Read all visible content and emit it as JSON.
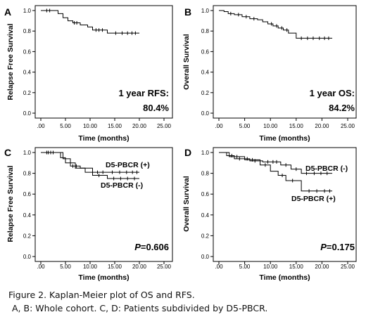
{
  "caption": {
    "line1": "Figure 2. Kaplan-Meier plot of OS and RFS.",
    "line2": "A, B: Whole cohort. C, D: Patients  subdivided by D5-PBCR."
  },
  "chart_data": [
    {
      "type": "line",
      "panel_label": "A",
      "xlabel": "Time (months)",
      "ylabel": "Relapse Free Survival",
      "xlim": [
        0,
        25
      ],
      "ylim": [
        0,
        1
      ],
      "x_ticks": [
        ".00",
        "5.00",
        "10.00",
        "15.00",
        "20.00",
        "25.00"
      ],
      "y_ticks": [
        "0.0",
        "0.2",
        "0.4",
        "0.6",
        "0.8",
        "1.0"
      ],
      "annotation": [
        "1 year RFS:",
        "80.4%"
      ],
      "series": [
        {
          "steps": [
            [
              0,
              1.0
            ],
            [
              2.5,
              1.0
            ],
            [
              3.5,
              0.97
            ],
            [
              4.5,
              0.93
            ],
            [
              5.5,
              0.9
            ],
            [
              6.5,
              0.88
            ],
            [
              8,
              0.86
            ],
            [
              9.5,
              0.84
            ],
            [
              10.5,
              0.81
            ],
            [
              13.5,
              0.78
            ],
            [
              20,
              0.78
            ]
          ],
          "censored": [
            1.2,
            1.8,
            6.8,
            7.3,
            11.2,
            11.8,
            12.5,
            15.2,
            16.5,
            17.6,
            18.5,
            19.2
          ]
        }
      ]
    },
    {
      "type": "line",
      "panel_label": "B",
      "xlabel": "Time (months)",
      "ylabel": "Overall Survival",
      "xlim": [
        0,
        25
      ],
      "ylim": [
        0,
        1
      ],
      "x_ticks": [
        ".00",
        "5.00",
        "10.00",
        "15.00",
        "20.00",
        "25.00"
      ],
      "y_ticks": [
        "0.0",
        "0.2",
        "0.4",
        "0.6",
        "0.8",
        "1.0"
      ],
      "annotation": [
        "1 year OS:",
        "84.2%"
      ],
      "series": [
        {
          "steps": [
            [
              0,
              1.0
            ],
            [
              1,
              0.99
            ],
            [
              1.8,
              0.97
            ],
            [
              3,
              0.96
            ],
            [
              4.5,
              0.94
            ],
            [
              6,
              0.92
            ],
            [
              7.5,
              0.91
            ],
            [
              8.5,
              0.89
            ],
            [
              9.5,
              0.87
            ],
            [
              10.5,
              0.85
            ],
            [
              11.5,
              0.83
            ],
            [
              12.5,
              0.81
            ],
            [
              13.5,
              0.78
            ],
            [
              15,
              0.73
            ],
            [
              22,
              0.73
            ]
          ],
          "censored": [
            2.3,
            3.8,
            5.3,
            6.8,
            10.2,
            11.2,
            12.2,
            13.2,
            16,
            17.2,
            18.3,
            19.5,
            20.5,
            21.3
          ]
        }
      ]
    },
    {
      "type": "line",
      "panel_label": "C",
      "xlabel": "Time (months)",
      "ylabel": "Relapse Free Survival",
      "xlim": [
        0,
        25
      ],
      "ylim": [
        0,
        1
      ],
      "x_ticks": [
        ".00",
        "5.00",
        "10.00",
        "15.00",
        "20.00",
        "25.00"
      ],
      "y_ticks": [
        "0.0",
        "0.2",
        "0.4",
        "0.6",
        "0.8",
        "1.0"
      ],
      "annotation": [
        "P=0.606"
      ],
      "series": [
        {
          "name": "D5-PBCR (+)",
          "steps": [
            [
              0,
              1.0
            ],
            [
              3,
              1.0
            ],
            [
              4,
              0.95
            ],
            [
              5,
              0.9
            ],
            [
              6,
              0.87
            ],
            [
              8,
              0.85
            ],
            [
              10.5,
              0.81
            ],
            [
              20,
              0.81
            ]
          ],
          "censored": [
            1.2,
            2,
            6.5,
            7.2,
            11.5,
            12.6,
            14.5,
            16,
            17.4,
            18.6,
            19.5
          ]
        },
        {
          "name": "D5-PBCR (-)",
          "steps": [
            [
              0,
              1.0
            ],
            [
              3.5,
              1.0
            ],
            [
              4.5,
              0.94
            ],
            [
              6,
              0.9
            ],
            [
              7,
              0.85
            ],
            [
              9,
              0.81
            ],
            [
              10.5,
              0.78
            ],
            [
              13.5,
              0.75
            ],
            [
              20,
              0.75
            ]
          ],
          "censored": [
            1.5,
            2.5,
            11.8,
            14.8,
            16.2,
            17.6,
            19
          ]
        }
      ]
    },
    {
      "type": "line",
      "panel_label": "D",
      "xlabel": "Time (months)",
      "ylabel": "Overall Survival",
      "xlim": [
        0,
        25
      ],
      "ylim": [
        0,
        1
      ],
      "x_ticks": [
        ".00",
        "5.00",
        "10.00",
        "15.00",
        "20.00",
        "25.00"
      ],
      "y_ticks": [
        "0.0",
        "0.2",
        "0.4",
        "0.6",
        "0.8",
        "1.0"
      ],
      "annotation": [
        "P=0.175"
      ],
      "series": [
        {
          "name": "D5-PBCR (-)",
          "steps": [
            [
              0,
              1.0
            ],
            [
              1.5,
              0.97
            ],
            [
              3,
              0.94
            ],
            [
              6,
              0.92
            ],
            [
              8.5,
              0.91
            ],
            [
              12,
              0.88
            ],
            [
              14,
              0.84
            ],
            [
              16,
              0.8
            ],
            [
              22,
              0.8
            ]
          ],
          "censored": [
            2.5,
            4,
            5.5,
            7,
            9.5,
            10.5,
            11.2,
            13,
            15,
            17,
            18.5,
            19.8,
            21
          ]
        },
        {
          "name": "D5-PBCR (+)",
          "steps": [
            [
              0,
              1.0
            ],
            [
              2,
              0.96
            ],
            [
              5,
              0.93
            ],
            [
              8,
              0.88
            ],
            [
              10,
              0.82
            ],
            [
              11.5,
              0.78
            ],
            [
              13,
              0.73
            ],
            [
              16,
              0.63
            ],
            [
              22,
              0.63
            ]
          ],
          "censored": [
            3.5,
            6.5,
            9,
            12.3,
            14.3,
            17.5,
            19,
            20.5,
            21.5
          ]
        }
      ]
    }
  ]
}
